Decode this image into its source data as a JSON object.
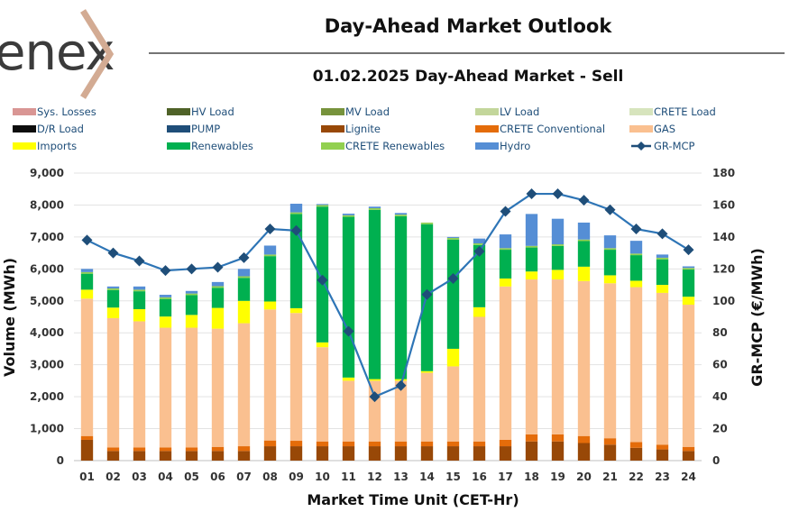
{
  "header": {
    "logo_text": "enex",
    "title": "Day-Ahead Market Outlook",
    "subtitle": "01.02.2025  Day-Ahead Market - Sell"
  },
  "chart_data": {
    "type": "bar",
    "stacked": true,
    "title": "01.02.2025  Day-Ahead Market - Sell",
    "xlabel": "Market Time Unit (CET-Hr)",
    "ylabel": "Volume (MWh)",
    "y2label": "GR-MCP (€/MWh)",
    "ylim": [
      0,
      9000
    ],
    "y2lim": [
      0,
      180
    ],
    "yticks": [
      "0",
      "1,000",
      "2,000",
      "3,000",
      "4,000",
      "5,000",
      "6,000",
      "7,000",
      "8,000",
      "9,000"
    ],
    "y2ticks": [
      "0",
      "20",
      "40",
      "60",
      "80",
      "100",
      "120",
      "140",
      "160",
      "180"
    ],
    "categories": [
      "01",
      "02",
      "03",
      "04",
      "05",
      "06",
      "07",
      "08",
      "09",
      "10",
      "11",
      "12",
      "13",
      "14",
      "15",
      "16",
      "17",
      "18",
      "19",
      "20",
      "21",
      "22",
      "23",
      "24"
    ],
    "legend": [
      {
        "name": "Sys. Losses",
        "color": "#d99694",
        "kind": "bar"
      },
      {
        "name": "HV Load",
        "color": "#4f6228",
        "kind": "bar"
      },
      {
        "name": "MV Load",
        "color": "#77933c",
        "kind": "bar"
      },
      {
        "name": "LV Load",
        "color": "#c3d69b",
        "kind": "bar"
      },
      {
        "name": "CRETE Load",
        "color": "#d7e4bd",
        "kind": "bar"
      },
      {
        "name": "D/R Load",
        "color": "#0d0d0d",
        "kind": "bar"
      },
      {
        "name": "PUMP",
        "color": "#1f4e79",
        "kind": "bar"
      },
      {
        "name": "Lignite",
        "color": "#984807",
        "kind": "bar"
      },
      {
        "name": "CRETE Conventional",
        "color": "#e46c0a",
        "kind": "bar"
      },
      {
        "name": "GAS",
        "color": "#fac090",
        "kind": "bar"
      },
      {
        "name": "Imports",
        "color": "#ffff00",
        "kind": "bar"
      },
      {
        "name": "Renewables",
        "color": "#00b050",
        "kind": "bar"
      },
      {
        "name": "CRETE Renewables",
        "color": "#92d050",
        "kind": "bar"
      },
      {
        "name": "Hydro",
        "color": "#558ed5",
        "kind": "bar"
      },
      {
        "name": "GR-MCP",
        "color": "#1f4e79",
        "kind": "line"
      }
    ],
    "series": [
      {
        "name": "Lignite",
        "values": [
          650,
          300,
          300,
          300,
          300,
          300,
          300,
          450,
          450,
          450,
          450,
          450,
          450,
          450,
          450,
          450,
          450,
          600,
          600,
          550,
          500,
          400,
          350,
          300
        ]
      },
      {
        "name": "CRETE Conventional",
        "values": [
          120,
          110,
          110,
          110,
          110,
          130,
          150,
          180,
          170,
          150,
          150,
          150,
          150,
          150,
          150,
          150,
          200,
          220,
          220,
          220,
          200,
          180,
          150,
          130
        ]
      },
      {
        "name": "GAS",
        "values": [
          4300,
          4050,
          3950,
          3750,
          3750,
          3700,
          3850,
          4100,
          4000,
          2950,
          1900,
          1900,
          1900,
          2150,
          2350,
          3900,
          4800,
          4850,
          4850,
          4850,
          4850,
          4850,
          4750,
          4450
        ]
      },
      {
        "name": "Imports",
        "values": [
          280,
          330,
          380,
          350,
          400,
          650,
          700,
          250,
          150,
          150,
          100,
          50,
          50,
          50,
          550,
          300,
          250,
          250,
          300,
          450,
          250,
          200,
          250,
          250
        ]
      },
      {
        "name": "Renewables",
        "values": [
          500,
          550,
          560,
          550,
          620,
          630,
          720,
          1420,
          2950,
          4250,
          5030,
          5300,
          5100,
          4600,
          3420,
          1950,
          900,
          750,
          750,
          800,
          800,
          800,
          800,
          850
        ]
      },
      {
        "name": "CRETE Renewables",
        "values": [
          50,
          50,
          50,
          50,
          50,
          50,
          50,
          50,
          50,
          50,
          50,
          50,
          50,
          50,
          50,
          50,
          50,
          50,
          50,
          50,
          50,
          50,
          50,
          50
        ]
      },
      {
        "name": "Hydro",
        "values": [
          100,
          60,
          100,
          80,
          80,
          130,
          230,
          280,
          270,
          30,
          50,
          50,
          50,
          0,
          30,
          150,
          430,
          1000,
          800,
          530,
          400,
          400,
          100,
          50
        ]
      },
      {
        "name": "GR-MCP",
        "axis": "right",
        "values": [
          138,
          130,
          125,
          119,
          120,
          121,
          127,
          145,
          144,
          113,
          81,
          40,
          47,
          104,
          114,
          131,
          156,
          167,
          167,
          163,
          157,
          145,
          142,
          132
        ]
      }
    ]
  }
}
